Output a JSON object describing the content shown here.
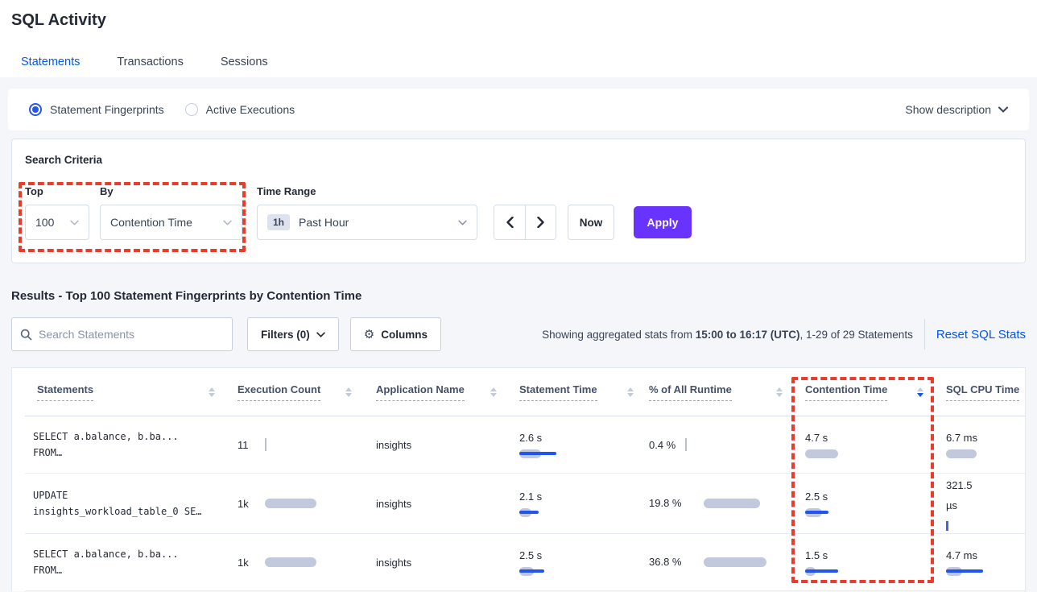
{
  "page": {
    "title": "SQL Activity"
  },
  "tabs": [
    {
      "label": "Statements",
      "active": true
    },
    {
      "label": "Transactions",
      "active": false
    },
    {
      "label": "Sessions",
      "active": false
    }
  ],
  "view_toggle": {
    "options": [
      {
        "label": "Statement Fingerprints",
        "selected": true
      },
      {
        "label": "Active Executions",
        "selected": false
      }
    ],
    "show_description": "Show description"
  },
  "criteria": {
    "heading": "Search Criteria",
    "top_label": "Top",
    "top_value": "100",
    "by_label": "By",
    "by_value": "Contention Time",
    "time_range_label": "Time Range",
    "time_badge": "1h",
    "time_value": "Past Hour",
    "now_label": "Now",
    "apply_label": "Apply"
  },
  "results": {
    "heading": "Results - Top 100 Statement Fingerprints by Contention Time",
    "search_placeholder": "Search Statements",
    "filters_label": "Filters (0)",
    "columns_label": "Columns",
    "stats_prefix": "Showing aggregated stats from ",
    "stats_bold": "15:00 to 16:17 (UTC)",
    "stats_suffix": ", 1-29 of 29 Statements",
    "reset_label": "Reset SQL Stats"
  },
  "table": {
    "columns": [
      {
        "label": "Statements",
        "sortable": true,
        "sort": null
      },
      {
        "label": "Execution Count",
        "sortable": true,
        "sort": null
      },
      {
        "label": "Application Name",
        "sortable": true,
        "sort": null
      },
      {
        "label": "Statement Time",
        "sortable": true,
        "sort": null
      },
      {
        "label": "% of All Runtime",
        "sortable": true,
        "sort": null
      },
      {
        "label": "Contention Time",
        "sortable": true,
        "sort": "desc"
      },
      {
        "label": "SQL CPU Time",
        "sortable": false,
        "sort": null
      }
    ],
    "rows": [
      {
        "statement_line1": "SELECT a.balance, b.ba...",
        "statement_line2": "FROM…",
        "execution_count": {
          "value": "11",
          "bar_gray": 0,
          "tick": "gray"
        },
        "application": "insights",
        "statement_time": {
          "value": "2.6 s",
          "bar_gray": 27,
          "bar_blue": 46
        },
        "runtime": {
          "value": "0.4 %",
          "wrapped": false,
          "bar_gray": 0,
          "tick": "gray"
        },
        "contention": {
          "value": "4.7 s",
          "bar_gray": 41,
          "bar_blue": 0
        },
        "sql_cpu": {
          "value": "6.7 ms",
          "wrapped": false,
          "bar_gray": 38,
          "bar_blue": 0
        }
      },
      {
        "statement_line1": "UPDATE",
        "statement_line2": "insights_workload_table_0 SE…",
        "execution_count": {
          "value": "1k",
          "bar_gray": 64
        },
        "application": "insights",
        "statement_time": {
          "value": "2.1 s",
          "bar_gray": 15,
          "bar_blue": 24
        },
        "runtime": {
          "value": "19.8 %",
          "wrapped": true,
          "bar_gray": 70
        },
        "contention": {
          "value": "2.5 s",
          "bar_gray": 21,
          "bar_blue": 29
        },
        "sql_cpu": {
          "value": "321.5 µs",
          "wrapped": true,
          "tick": "blue"
        }
      },
      {
        "statement_line1": "SELECT a.balance, b.ba...",
        "statement_line2": "FROM…",
        "execution_count": {
          "value": "1k",
          "bar_gray": 64
        },
        "application": "insights",
        "statement_time": {
          "value": "2.5 s",
          "bar_gray": 18,
          "bar_blue": 31
        },
        "runtime": {
          "value": "36.8 %",
          "wrapped": true,
          "bar_gray": 78
        },
        "contention": {
          "value": "1.5 s",
          "bar_gray": 13,
          "bar_blue": 41
        },
        "sql_cpu": {
          "value": "4.7 ms",
          "bar_gray": 20,
          "bar_blue": 46
        }
      }
    ]
  },
  "annotations": {
    "color": "#e93c2c"
  }
}
